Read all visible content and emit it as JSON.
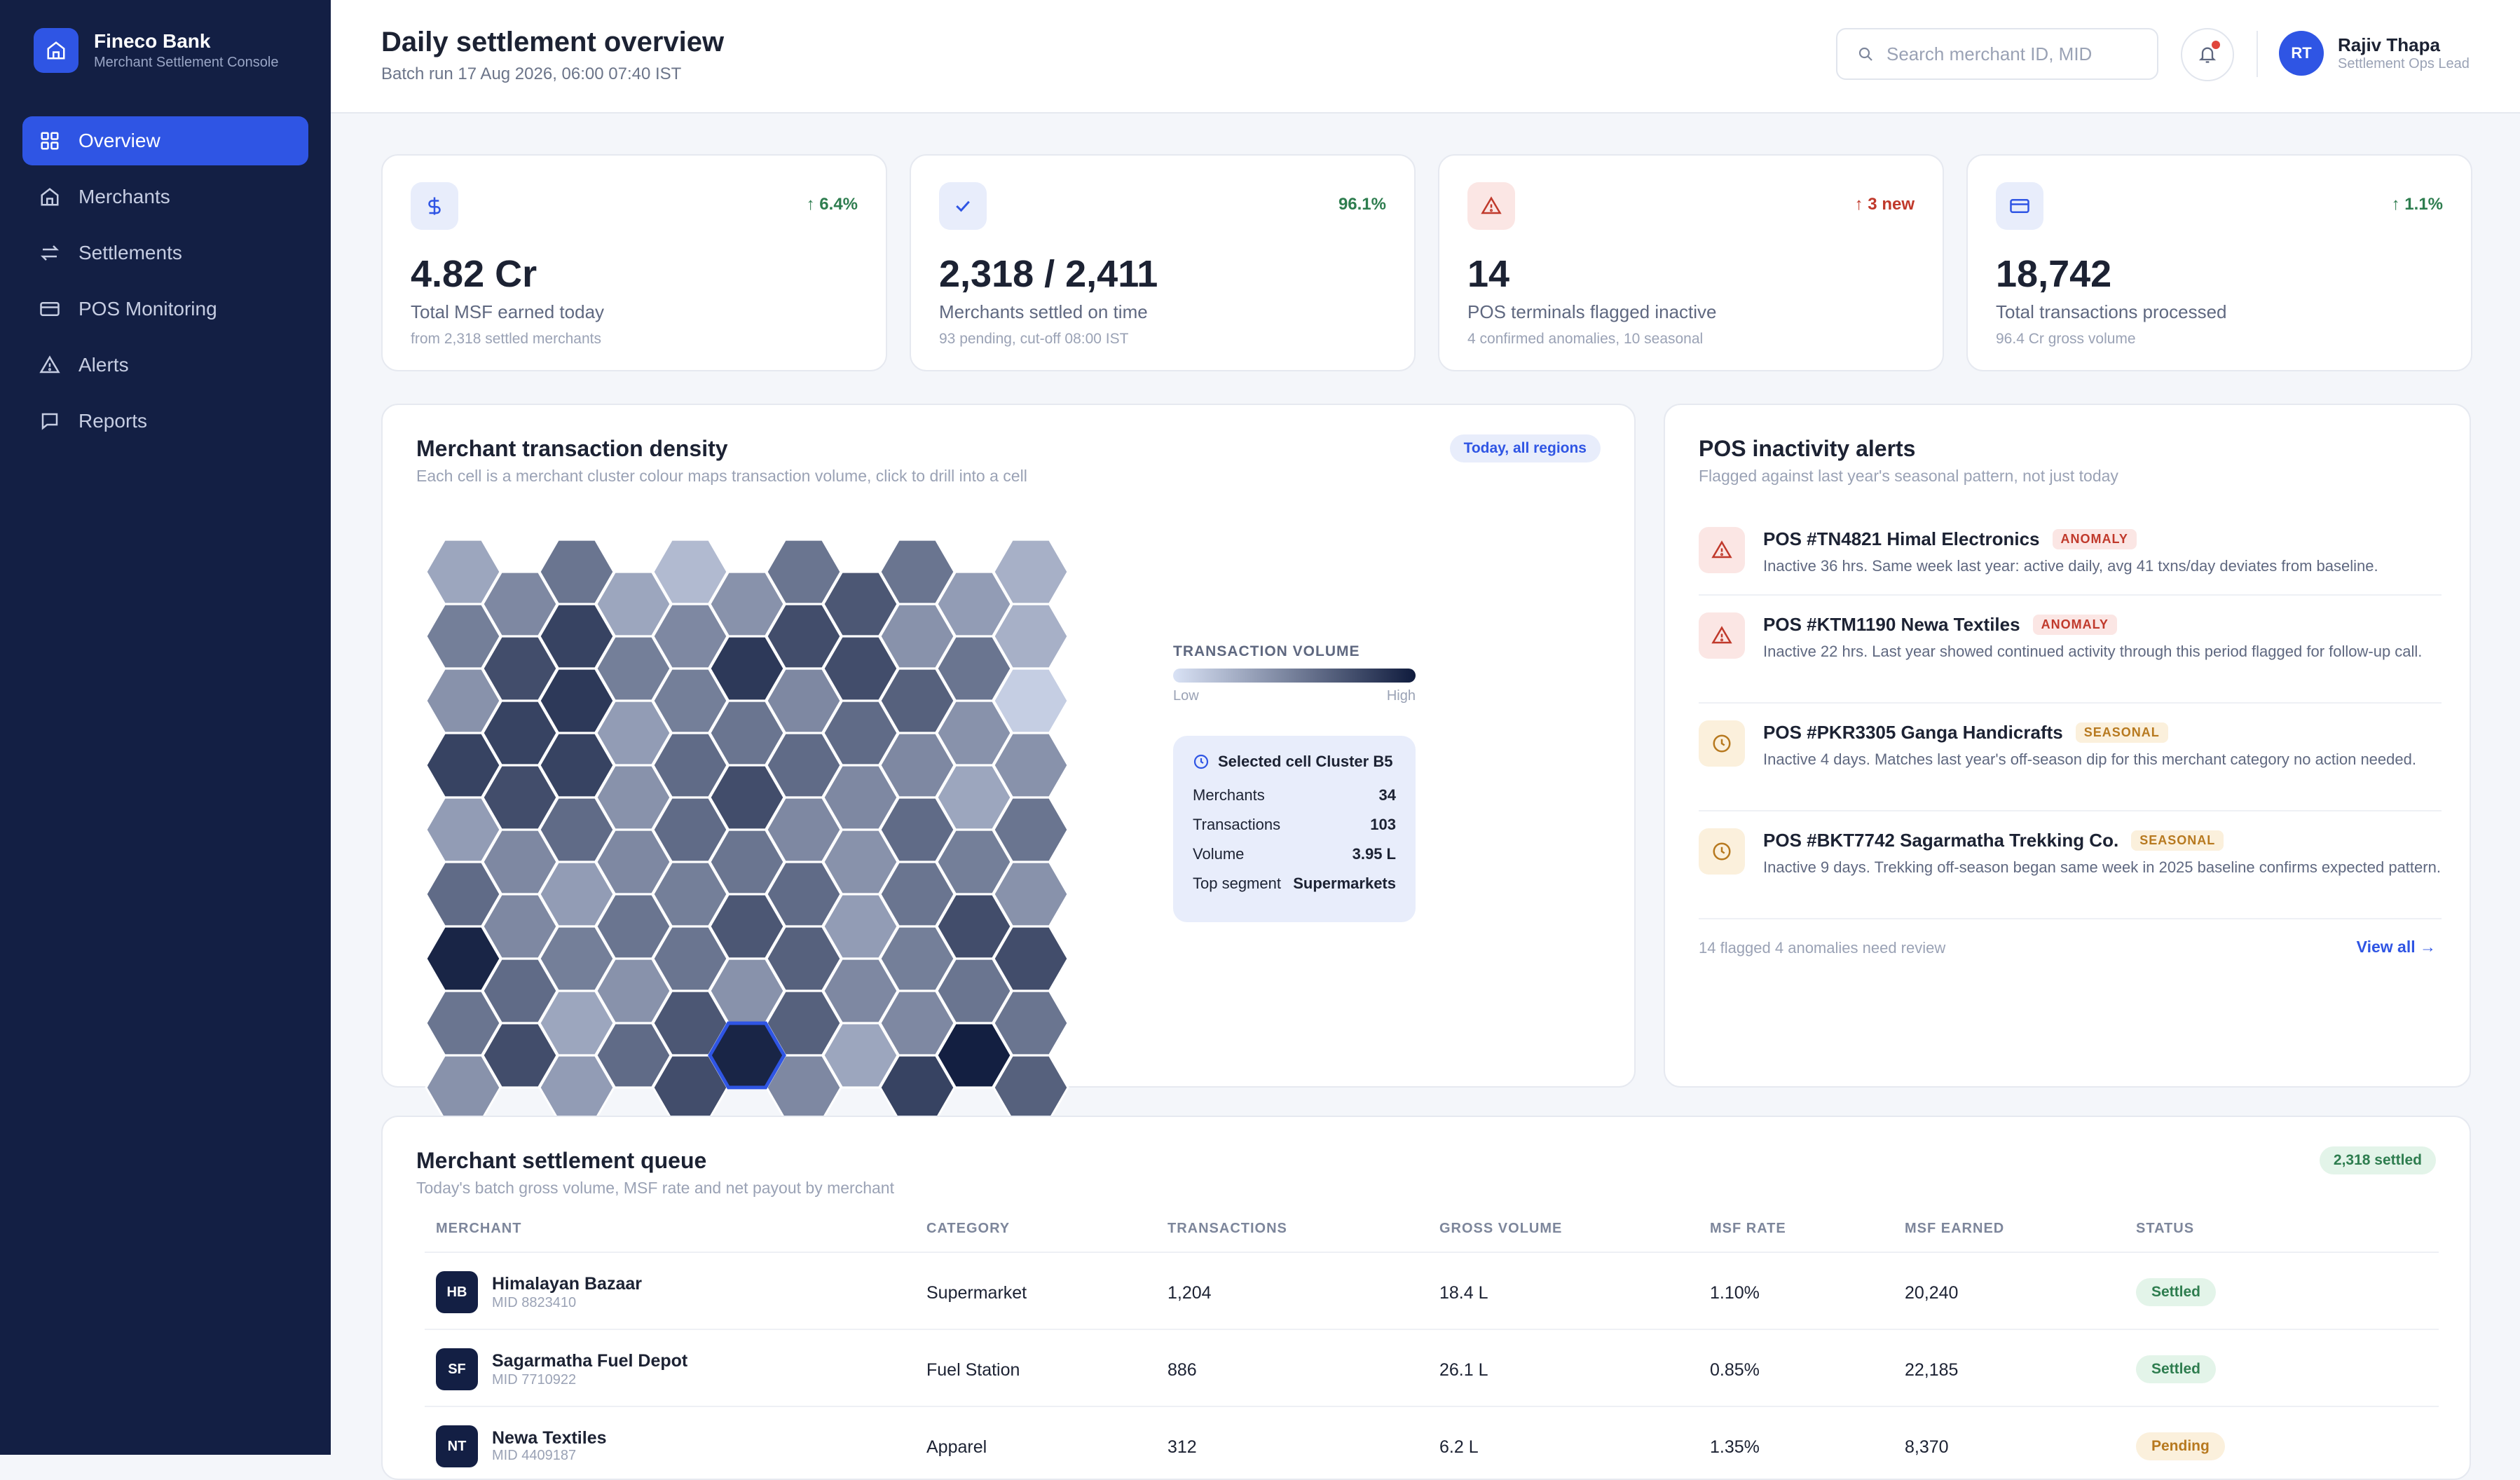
{
  "brand": {
    "name": "Fineco Bank",
    "subtitle": "Merchant Settlement Console"
  },
  "nav": [
    {
      "label": "Overview",
      "icon": "grid-icon",
      "active": true
    },
    {
      "label": "Merchants",
      "icon": "store-icon"
    },
    {
      "label": "Settlements",
      "icon": "arrows-exchange-icon"
    },
    {
      "label": "POS Monitoring",
      "icon": "card-icon"
    },
    {
      "label": "Alerts",
      "icon": "warning-icon"
    },
    {
      "label": "Reports",
      "icon": "chat-report-icon"
    }
  ],
  "header": {
    "title": "Daily settlement overview",
    "subtitle": "Batch run 17 Aug 2026, 06:00 07:40 IST",
    "search_placeholder": "Search merchant ID, MID",
    "user": {
      "initials": "RT",
      "name": "Rajiv Thapa",
      "role": "Settlement Ops Lead"
    }
  },
  "kpis": [
    {
      "icon": "dollar-icon",
      "change": "6.4%",
      "change_dir": "up",
      "change_color": "#2e7d4f",
      "value": "4.82 Cr",
      "label": "Total MSF earned today",
      "sub": "from 2,318 settled merchants"
    },
    {
      "icon": "check-icon",
      "change": "96.1%",
      "change_dir": "none",
      "change_color": "#2e7d4f",
      "value": "2,318 / 2,411",
      "label": "Merchants settled on time",
      "sub": "93 pending, cut-off 08:00 IST"
    },
    {
      "icon": "warning-icon",
      "change": "3 new",
      "change_dir": "up",
      "change_color": "#c0392b",
      "value": "14",
      "label": "POS terminals flagged inactive",
      "sub": "4 confirmed anomalies, 10 seasonal"
    },
    {
      "icon": "card-icon",
      "change": "1.1%",
      "change_dir": "up",
      "change_color": "#2e7d4f",
      "value": "18,742",
      "label": "Total transactions processed",
      "sub": "96.4 Cr gross volume"
    }
  ],
  "density": {
    "title": "Merchant transaction density",
    "subtitle": "Each cell is a merchant cluster colour maps transaction volume, click to drill into a cell",
    "chip": "Today, all regions",
    "legend_title": "TRANSACTION VOLUME",
    "legend_low": "Low",
    "legend_high": "High",
    "selected": {
      "title": "Selected cell Cluster B5",
      "rows": [
        {
          "label": "Merchants",
          "value": "34"
        },
        {
          "label": "Transactions",
          "value": "103"
        },
        {
          "label": "Volume",
          "value": "3.95 L"
        },
        {
          "label": "Top segment",
          "value": "Supermarkets"
        }
      ]
    },
    "grid_levels": [
      [
        0.3,
        0.55,
        0.2,
        0.55,
        0.55,
        0.25
      ],
      [
        0.5,
        0.8,
        0.45,
        0.75,
        0.4,
        0.25
      ],
      [
        0.4,
        0.85,
        0.5,
        0.45,
        0.65,
        0.1
      ],
      [
        0.8,
        0.8,
        0.6,
        0.6,
        0.45,
        0.4
      ],
      [
        0.35,
        0.6,
        0.6,
        0.45,
        0.6,
        0.55
      ],
      [
        0.6,
        0.35,
        0.5,
        0.6,
        0.55,
        0.4
      ],
      [
        0.95,
        0.5,
        0.55,
        0.65,
        0.5,
        0.75
      ],
      [
        0.55,
        0.3,
        0.7,
        0.65,
        0.45,
        0.55
      ],
      [
        0.4,
        0.35,
        0.75,
        0.45,
        0.8,
        0.65
      ]
    ],
    "grid_levels_odd": [
      [
        0.45,
        0.3,
        0.4,
        0.7,
        0.35
      ],
      [
        0.75,
        0.5,
        0.85,
        0.75,
        0.55
      ],
      [
        0.8,
        0.35,
        0.55,
        0.6,
        0.4
      ],
      [
        0.75,
        0.4,
        0.75,
        0.45,
        0.3
      ],
      [
        0.45,
        0.45,
        0.55,
        0.4,
        0.5
      ],
      [
        0.45,
        0.55,
        0.7,
        0.35,
        0.75
      ],
      [
        0.6,
        0.4,
        0.4,
        0.45,
        0.55
      ],
      [
        0.75,
        0.6,
        0.95,
        0.3,
        0.98
      ]
    ],
    "selected_cell": {
      "row": 7,
      "col": 2,
      "odd": true
    }
  },
  "alerts": {
    "title": "POS inactivity alerts",
    "subtitle": "Flagged against last year's seasonal pattern, not just today",
    "items": [
      {
        "type": "anomaly",
        "badge": "ANOMALY",
        "title": "POS #TN4821 Himal Electronics",
        "desc": "Inactive 36 hrs. Same week last year: active daily, avg 41 txns/day deviates from baseline."
      },
      {
        "type": "anomaly",
        "badge": "ANOMALY",
        "title": "POS #KTM1190 Newa Textiles",
        "desc": "Inactive 22 hrs. Last year showed continued activity through this period flagged for follow-up call."
      },
      {
        "type": "seasonal",
        "badge": "SEASONAL",
        "title": "POS #PKR3305 Ganga Handicrafts",
        "desc": "Inactive 4 days. Matches last year's off-season dip for this merchant category no action needed."
      },
      {
        "type": "seasonal",
        "badge": "SEASONAL",
        "title": "POS #BKT7742 Sagarmatha Trekking Co.",
        "desc": "Inactive 9 days. Trekking off-season began same week in 2025 baseline confirms expected pattern."
      }
    ],
    "footer": "14 flagged 4 anomalies need review",
    "view_all": "View all →"
  },
  "queue": {
    "title": "Merchant settlement queue",
    "subtitle": "Today's batch gross volume, MSF rate and net payout by merchant",
    "chip": "2,318 settled",
    "columns": [
      "MERCHANT",
      "CATEGORY",
      "TRANSACTIONS",
      "GROSS VOLUME",
      "MSF RATE",
      "MSF EARNED",
      "STATUS"
    ],
    "rows": [
      {
        "initials": "HB",
        "name": "Himalayan Bazaar",
        "mid": "MID 8823410",
        "category": "Supermarket",
        "transactions": "1,204",
        "gross": "18.4 L",
        "rate": "1.10%",
        "earned": "20,240",
        "status": "Settled",
        "status_type": "settled"
      },
      {
        "initials": "SF",
        "name": "Sagarmatha Fuel Depot",
        "mid": "MID 7710922",
        "category": "Fuel Station",
        "transactions": "886",
        "gross": "26.1 L",
        "rate": "0.85%",
        "earned": "22,185",
        "status": "Settled",
        "status_type": "settled"
      },
      {
        "initials": "NT",
        "name": "Newa Textiles",
        "mid": "MID 4409187",
        "category": "Apparel",
        "transactions": "312",
        "gross": "6.2 L",
        "rate": "1.35%",
        "earned": "8,370",
        "status": "Pending",
        "status_type": "pending"
      }
    ]
  }
}
